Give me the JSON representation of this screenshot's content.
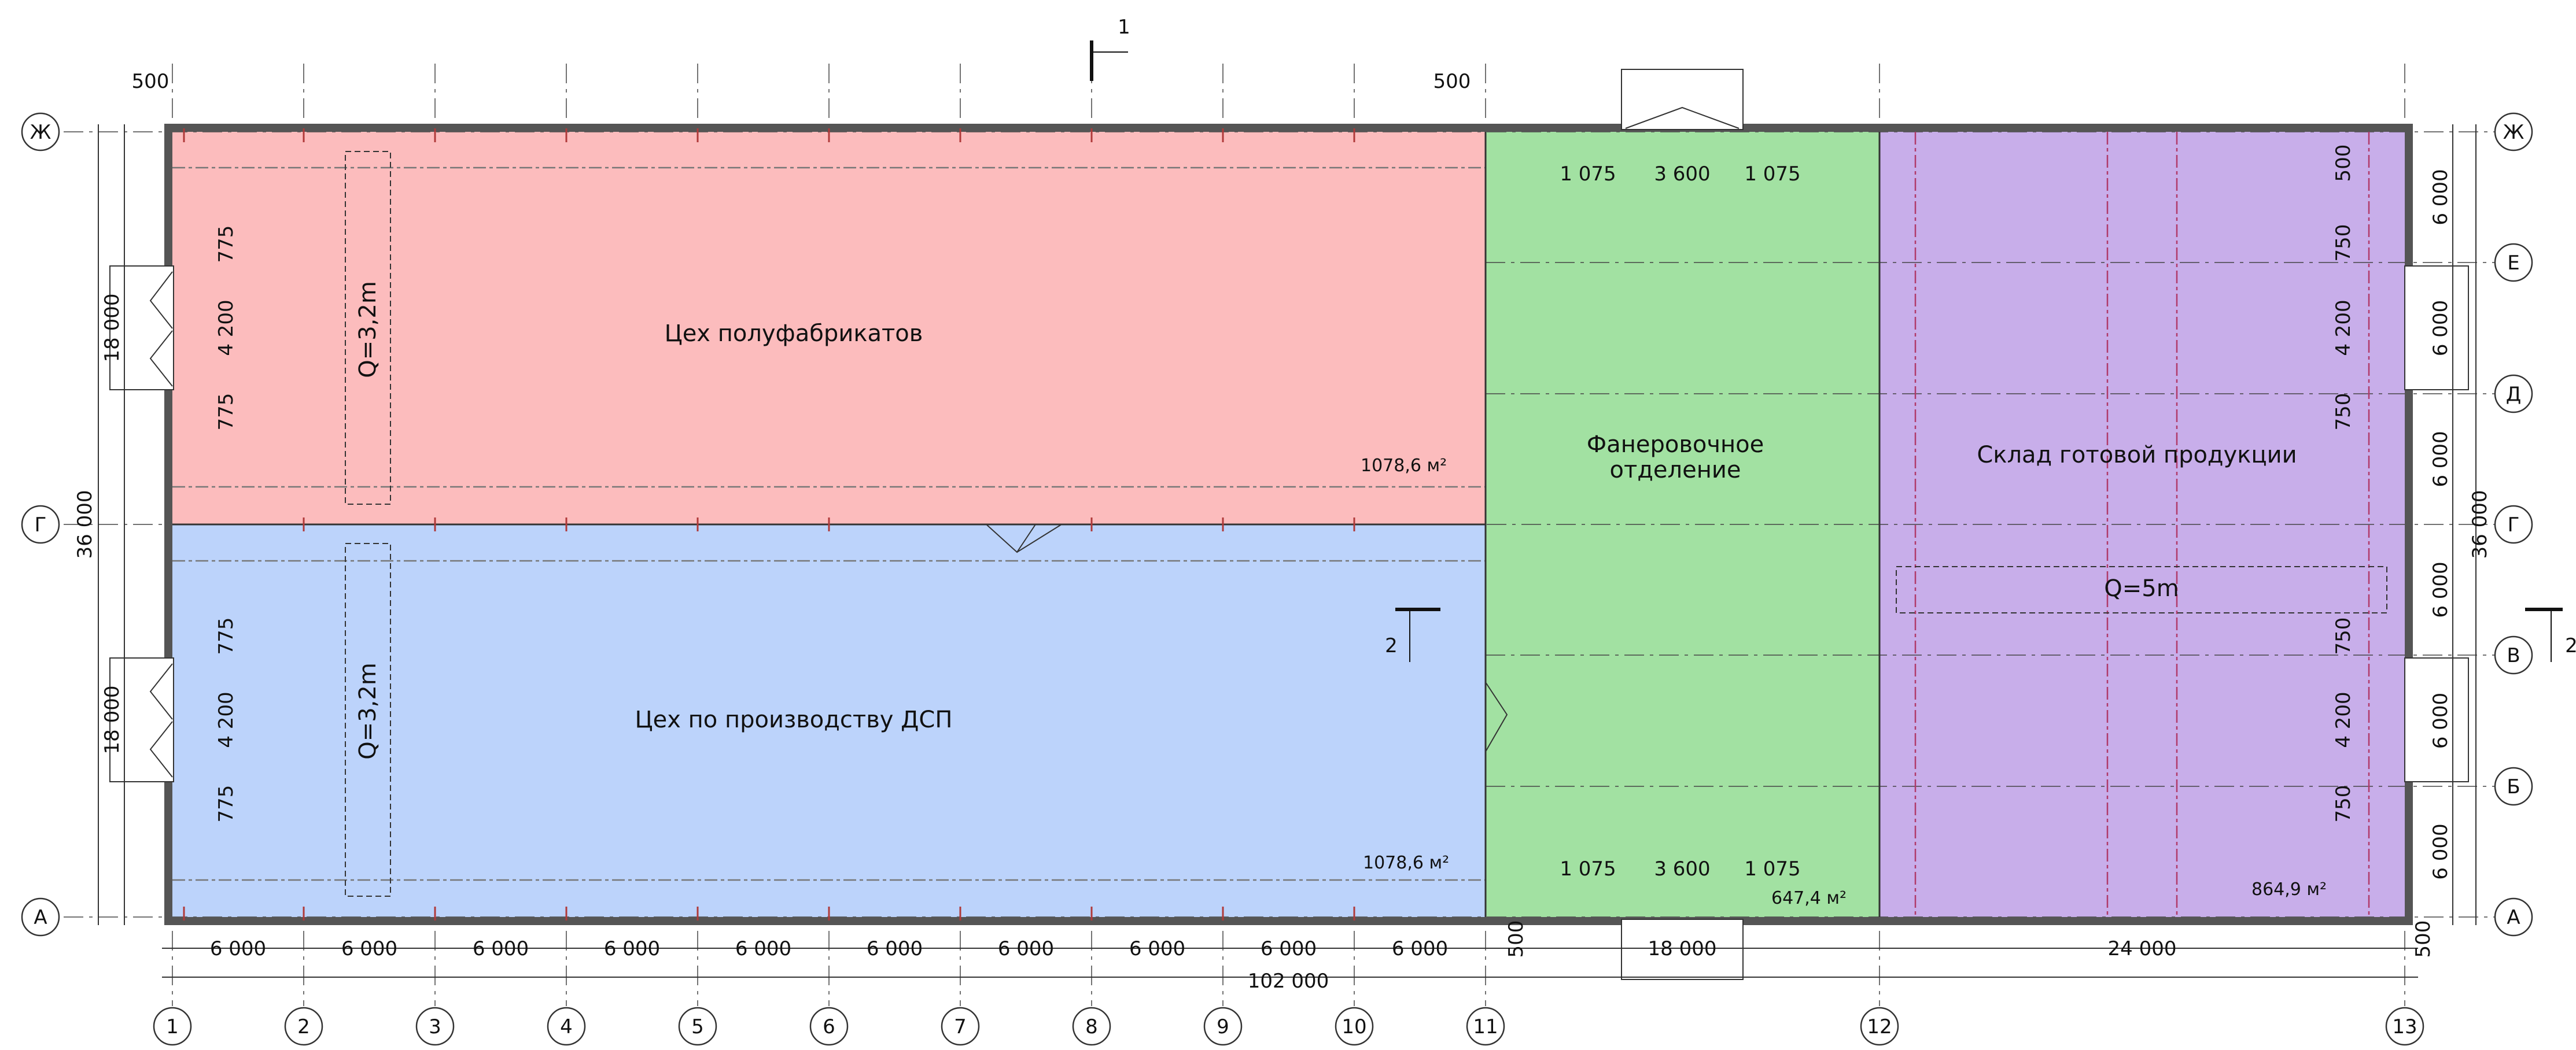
{
  "rooms": [
    {
      "name": "Цех полуфабрикатов",
      "area": "1078,6 м²",
      "color": "#fcbcbd"
    },
    {
      "name": "Цех по производству ДСП",
      "area": "1078,6 м²",
      "color": "#bcd3fb"
    },
    {
      "name_line1": "Фанеровочное",
      "name_line2": "отделение",
      "area": "647,4 м²",
      "color": "#a2e1a2"
    },
    {
      "name": "Склад готовой продукции",
      "area": "864,9 м²",
      "color": "#c8aeea"
    }
  ],
  "cranes": {
    "top_left": "Q=3,2m",
    "bottom_left": "Q=3,2m",
    "warehouse": "Q=5m"
  },
  "column_axes": [
    "1",
    "2",
    "3",
    "4",
    "5",
    "6",
    "7",
    "8",
    "9",
    "10",
    "11",
    "12",
    "13"
  ],
  "row_axes": {
    "left": [
      "Ж",
      "Г",
      "А"
    ],
    "right": [
      "Ж",
      "Е",
      "Д",
      "Г",
      "В",
      "Б",
      "А"
    ]
  },
  "dimensions": {
    "bottom_spans": [
      "6 000",
      "6 000",
      "6 000",
      "6 000",
      "6 000",
      "6 000",
      "6 000",
      "6 000",
      "6 000",
      "6 000"
    ],
    "span_veneer": "18 000",
    "span_warehouse": "24 000",
    "total_length": "102 000",
    "edge_500": "500",
    "left_height_top": "18 000",
    "left_height_bottom": "18 000",
    "left_total": "36 000",
    "right_total": "36 000",
    "right_spans": [
      "6 000",
      "6 000",
      "6 000",
      "6 000",
      "6 000",
      "6 000"
    ],
    "gate_left_a": "775",
    "gate_left_b": "4 200",
    "gate_left_c": "775",
    "gate_right_a": "750",
    "gate_right_b": "4 200",
    "gate_right_c": "750",
    "veneer_gate_a": "1 075",
    "veneer_gate_b": "3 600",
    "veneer_gate_c": "1 075"
  },
  "sections": {
    "s1": "1",
    "s2": "2"
  }
}
